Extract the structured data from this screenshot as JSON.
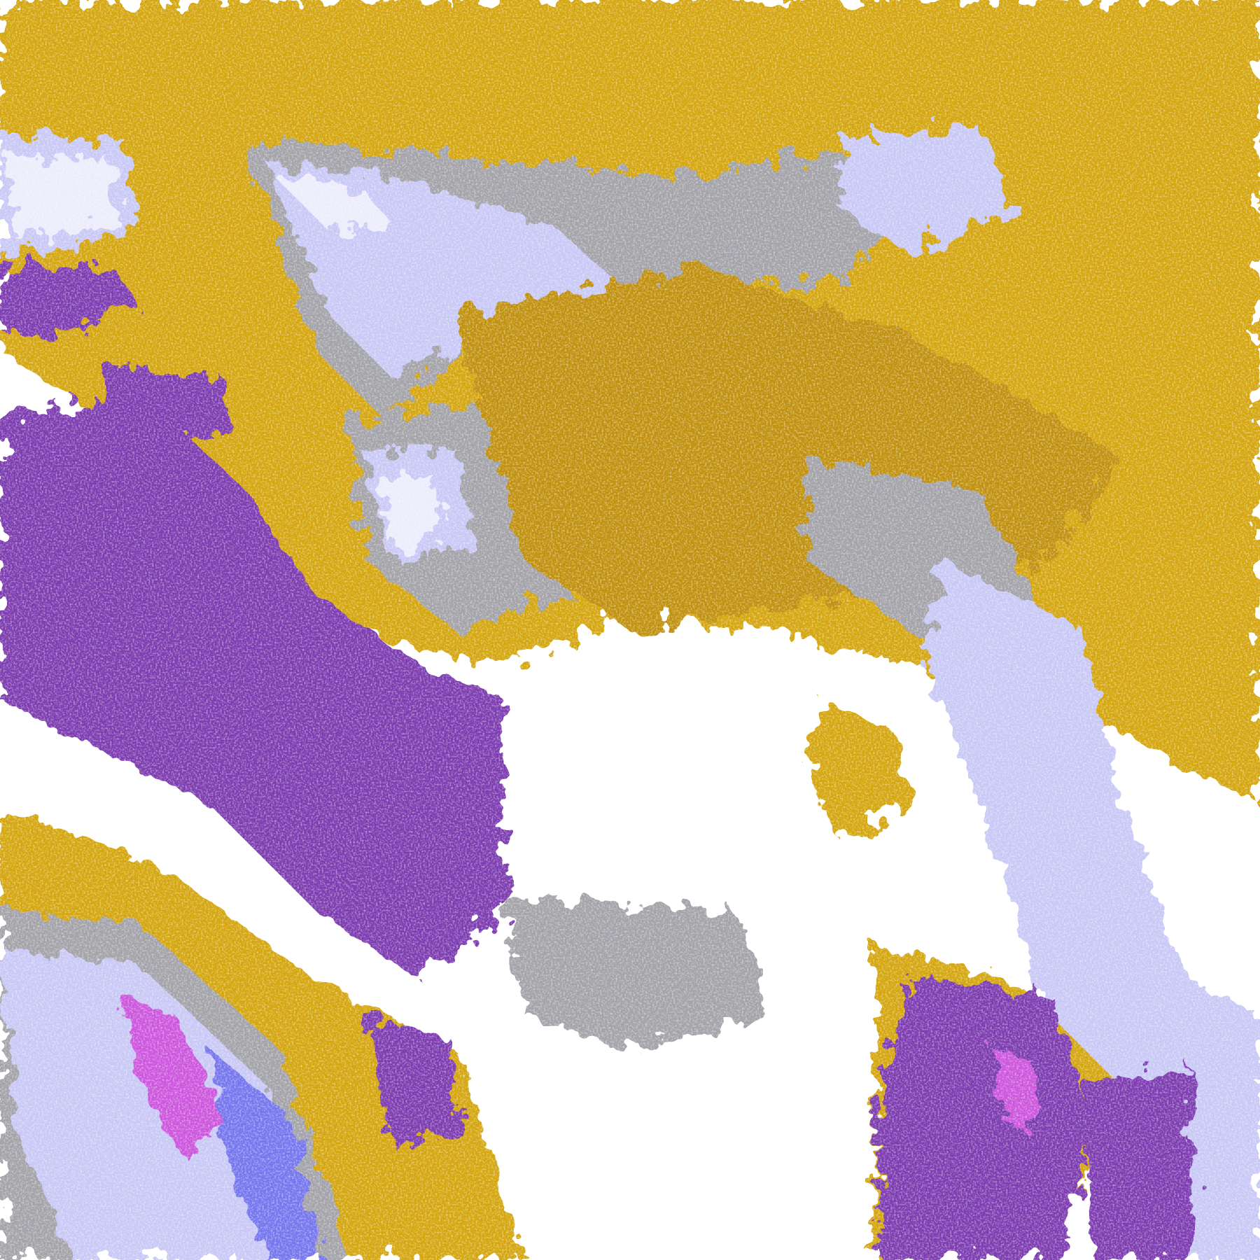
{
  "map": {
    "classes": [
      {
        "key": "background",
        "color": "#ffffff"
      },
      {
        "key": "gold",
        "color": "#d4a50a"
      },
      {
        "key": "dark-gold",
        "color": "#c0900c"
      },
      {
        "key": "purple",
        "color": "#7b3ab0"
      },
      {
        "key": "gray",
        "color": "#a2a2a8"
      },
      {
        "key": "lavender",
        "color": "#c8c8f6"
      },
      {
        "key": "pale-lavender",
        "color": "#ececfc"
      },
      {
        "key": "blue",
        "color": "#7474ee"
      },
      {
        "key": "magenta",
        "color": "#cc55dd"
      }
    ]
  }
}
